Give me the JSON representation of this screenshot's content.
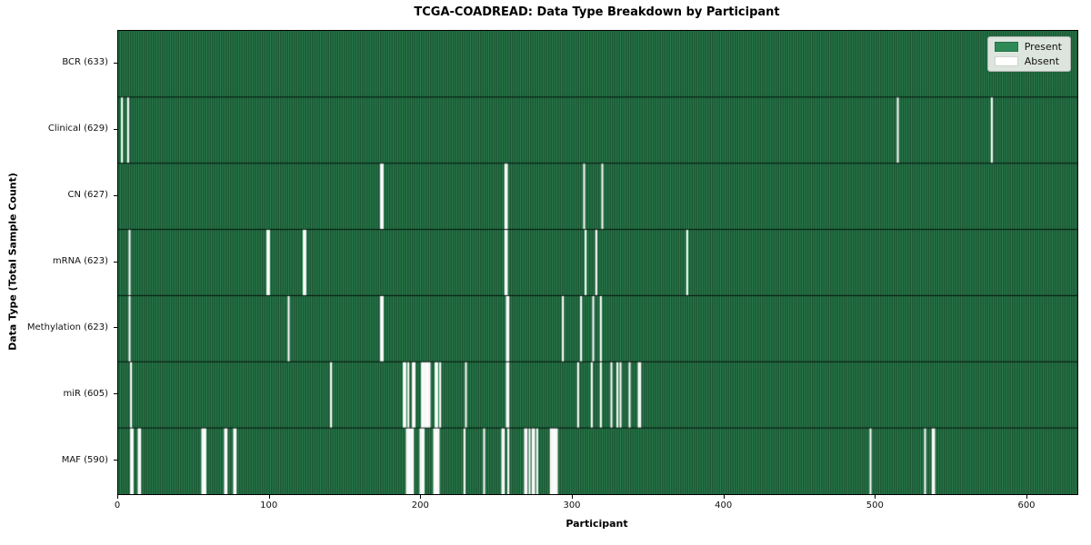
{
  "figure": {
    "title": "TCGA-COADREAD: Data Type Breakdown by Participant",
    "xlabel": "Participant",
    "ylabel": "Data Type (Total Sample Count)"
  },
  "legend": {
    "items": [
      {
        "label": "Present",
        "color": "#2e8b57"
      },
      {
        "label": "Absent",
        "color": "#ffffff"
      }
    ]
  },
  "colors": {
    "present": "#2e8b57",
    "present_edge": "rgba(13,44,26,0.9)",
    "absent": "#ffffff",
    "row_separator": "rgba(0,0,0,0.85)",
    "spine": "#000000",
    "legend_bg": "#f2f3f0",
    "legend_border": "#b5b5b5"
  },
  "chart_data": {
    "type": "heatmap",
    "title": "TCGA-COADREAD: Data Type Breakdown by Participant",
    "xlabel": "Participant",
    "ylabel": "Data Type (Total Sample Count)",
    "legend_entries": [
      "Present",
      "Absent"
    ],
    "legend_position": "upper right",
    "n_participants": 633,
    "xlim": [
      0,
      633
    ],
    "x_ticks": [
      0,
      100,
      200,
      300,
      400,
      500,
      600
    ],
    "grid": false,
    "rows": [
      {
        "label": "BCR (633)",
        "data_type": "BCR",
        "present_count": 633,
        "absent_participants": []
      },
      {
        "label": "Clinical (629)",
        "data_type": "Clinical",
        "present_count": 629,
        "absent_participants": [
          2,
          6,
          514,
          576
        ]
      },
      {
        "label": "CN (627)",
        "data_type": "CN",
        "present_count": 627,
        "absent_participants": [
          173,
          174,
          255,
          256,
          307,
          319
        ]
      },
      {
        "label": "mRNA (623)",
        "data_type": "mRNA",
        "present_count": 623,
        "absent_participants": [
          7,
          98,
          99,
          122,
          123,
          255,
          256,
          308,
          315,
          375
        ]
      },
      {
        "label": "Methylation (623)",
        "data_type": "Methylation",
        "present_count": 623,
        "absent_participants": [
          7,
          112,
          173,
          174,
          256,
          257,
          293,
          305,
          313,
          318
        ]
      },
      {
        "label": "miR (605)",
        "data_type": "miR",
        "present_count": 605,
        "absent_participants": [
          8,
          140,
          188,
          189,
          191,
          194,
          195,
          200,
          201,
          202,
          203,
          204,
          205,
          209,
          210,
          212,
          229,
          256,
          257,
          303,
          312,
          318,
          325,
          329,
          331,
          337,
          343,
          344
        ]
      },
      {
        "label": "MAF (590)",
        "data_type": "MAF",
        "present_count": 590,
        "absent_participants": [
          8,
          9,
          13,
          14,
          55,
          56,
          57,
          70,
          71,
          76,
          77,
          190,
          191,
          192,
          193,
          194,
          199,
          200,
          201,
          208,
          209,
          210,
          211,
          228,
          241,
          253,
          254,
          257,
          268,
          269,
          271,
          273,
          274,
          276,
          285,
          286,
          287,
          288,
          289,
          496,
          532,
          537,
          538
        ]
      }
    ]
  }
}
